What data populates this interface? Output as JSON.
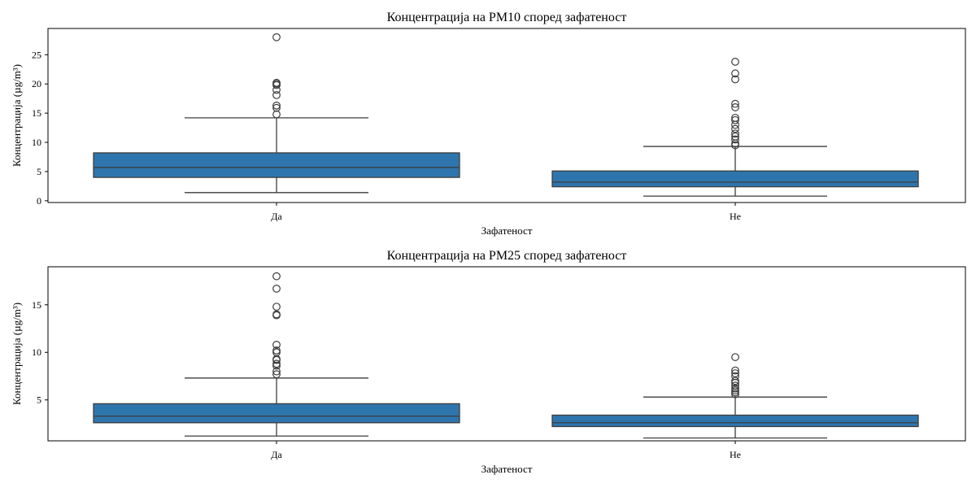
{
  "chart_data": [
    {
      "type": "box",
      "title": "Концентрација на PM10 според зафатеност",
      "xlabel": "Зафатеност",
      "ylabel": "Концентрација (µg/m³)",
      "ylim": [
        -0.3,
        29.5
      ],
      "yticks": [
        0,
        5,
        10,
        15,
        20,
        25
      ],
      "categories": [
        "Да",
        "Не"
      ],
      "color": "#2f75ad",
      "edge_color": "#3d3d3d",
      "boxes": [
        {
          "category": "Да",
          "whisker_low": 1.4,
          "q1": 4.0,
          "median": 5.7,
          "q3": 8.2,
          "whisker_high": 14.2,
          "outliers": [
            14.8,
            15.9,
            16.3,
            18.1,
            19.0,
            19.8,
            20.0,
            20.2,
            28.0
          ]
        },
        {
          "category": "Не",
          "whisker_low": 0.8,
          "q1": 2.4,
          "median": 3.2,
          "q3": 5.1,
          "whisker_high": 9.3,
          "outliers": [
            9.5,
            9.8,
            10.5,
            11.0,
            11.5,
            12.3,
            13.0,
            13.8,
            14.2,
            16.0,
            16.6,
            20.8,
            21.8,
            23.8
          ]
        }
      ]
    },
    {
      "type": "box",
      "title": "Концентрација на PM25 според зафатеност",
      "xlabel": "Зафатеност",
      "ylabel": "Концентрација (µg/m³)",
      "ylim": [
        0.7,
        19.0
      ],
      "yticks": [
        5,
        10,
        15
      ],
      "categories": [
        "Да",
        "Не"
      ],
      "color": "#2f75ad",
      "edge_color": "#3d3d3d",
      "boxes": [
        {
          "category": "Да",
          "whisker_low": 1.2,
          "q1": 2.6,
          "median": 3.3,
          "q3": 4.6,
          "whisker_high": 7.3,
          "outliers": [
            7.7,
            8.0,
            8.6,
            8.8,
            9.2,
            9.3,
            10.0,
            10.2,
            10.8,
            13.9,
            14.0,
            14.8,
            16.7,
            18.0
          ]
        },
        {
          "category": "Не",
          "whisker_low": 1.0,
          "q1": 2.2,
          "median": 2.6,
          "q3": 3.4,
          "whisker_high": 5.3,
          "outliers": [
            5.6,
            5.8,
            6.0,
            6.2,
            6.5,
            6.8,
            7.0,
            7.5,
            7.8,
            8.1,
            9.5
          ]
        }
      ]
    }
  ]
}
